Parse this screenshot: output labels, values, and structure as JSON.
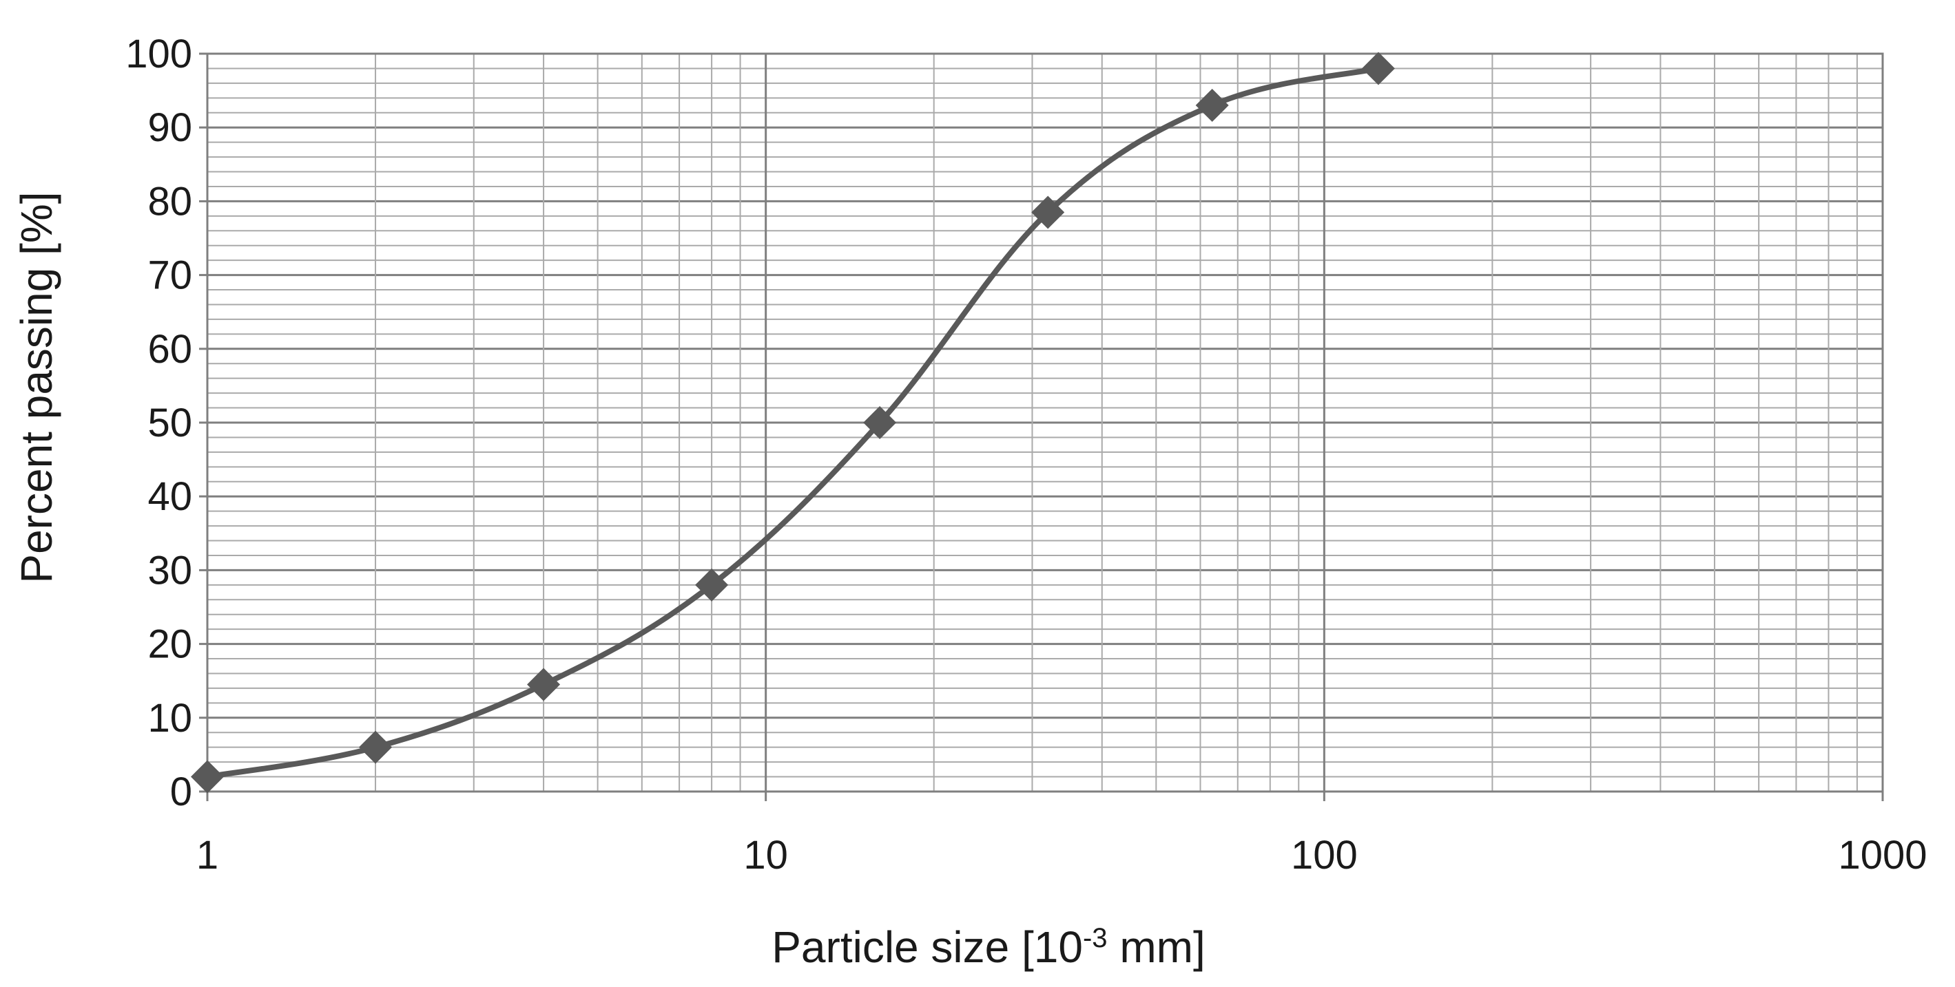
{
  "chart_data": {
    "type": "line",
    "title": "",
    "xlabel": "Particle size [10-3 mm]",
    "xlabel_parts": {
      "before": "Particle size [10",
      "superscript": "-3",
      "after": " mm]"
    },
    "ylabel": "Percent passing [%]",
    "x_scale": "log",
    "xlim": [
      1,
      1000
    ],
    "ylim": [
      0,
      100
    ],
    "x_ticks": [
      1,
      10,
      100,
      1000
    ],
    "x_tick_labels": [
      "1",
      "10",
      "100",
      "1000"
    ],
    "y_ticks": [
      0,
      10,
      20,
      30,
      40,
      50,
      60,
      70,
      80,
      90,
      100
    ],
    "y_tick_labels": [
      "0",
      "10",
      "20",
      "30",
      "40",
      "50",
      "60",
      "70",
      "80",
      "90",
      "100"
    ],
    "y_minor_step": 2,
    "grid": true,
    "legend": "none",
    "line_color": "#595959",
    "marker": "diamond",
    "series": [
      {
        "x": [
          1,
          2,
          4,
          8,
          16,
          32,
          63,
          125
        ],
        "y": [
          2,
          6,
          14.5,
          28,
          50,
          78.5,
          93,
          98
        ]
      }
    ]
  }
}
